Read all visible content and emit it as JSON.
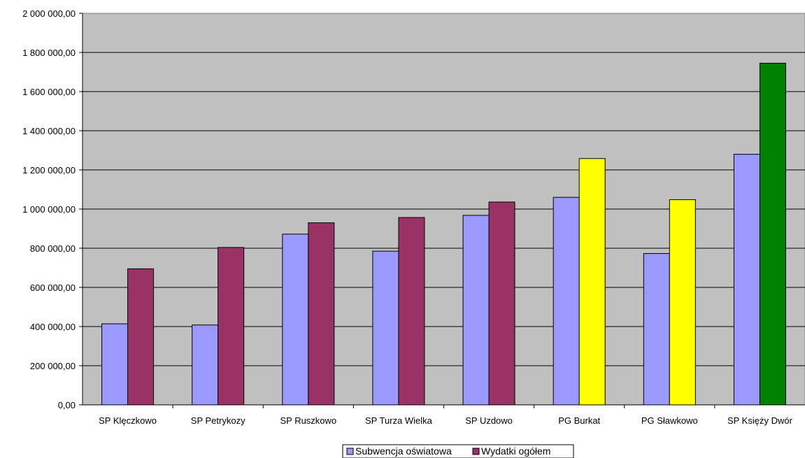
{
  "chart_data": {
    "type": "bar",
    "categories": [
      "SP Klęczkowo",
      "SP Petrykozy",
      "SP Ruszkowo",
      "SP Turza Wielka",
      "SP Uzdowo",
      "PG Burkat",
      "PG Sławkowo",
      "SP Księży Dwór"
    ],
    "series": [
      {
        "name": "Subwencja oświatowa",
        "color": "#9999FF",
        "values": [
          414000,
          408000,
          872000,
          785000,
          968000,
          1060000,
          773000,
          1280000
        ]
      },
      {
        "name": "Wydatki ogółem",
        "color": "#993366",
        "values": [
          695000,
          804000,
          930000,
          957000,
          1036000,
          1258000,
          1048000,
          1745000
        ],
        "point_colors": [
          "#993366",
          "#993366",
          "#993366",
          "#993366",
          "#993366",
          "#FFFF00",
          "#FFFF00",
          "#008000"
        ]
      }
    ],
    "ylim": [
      0,
      2000000
    ],
    "yticks": [
      "0,00",
      "200 000,00",
      "400 000,00",
      "600 000,00",
      "800 000,00",
      "1 000 000,00",
      "1 200 000,00",
      "1 400 000,00",
      "1 600 000,00",
      "1 800 000,00",
      "2 000 000,00"
    ],
    "grid": true,
    "legend_position": "bottom",
    "plot_background": "#C0C0C0"
  }
}
